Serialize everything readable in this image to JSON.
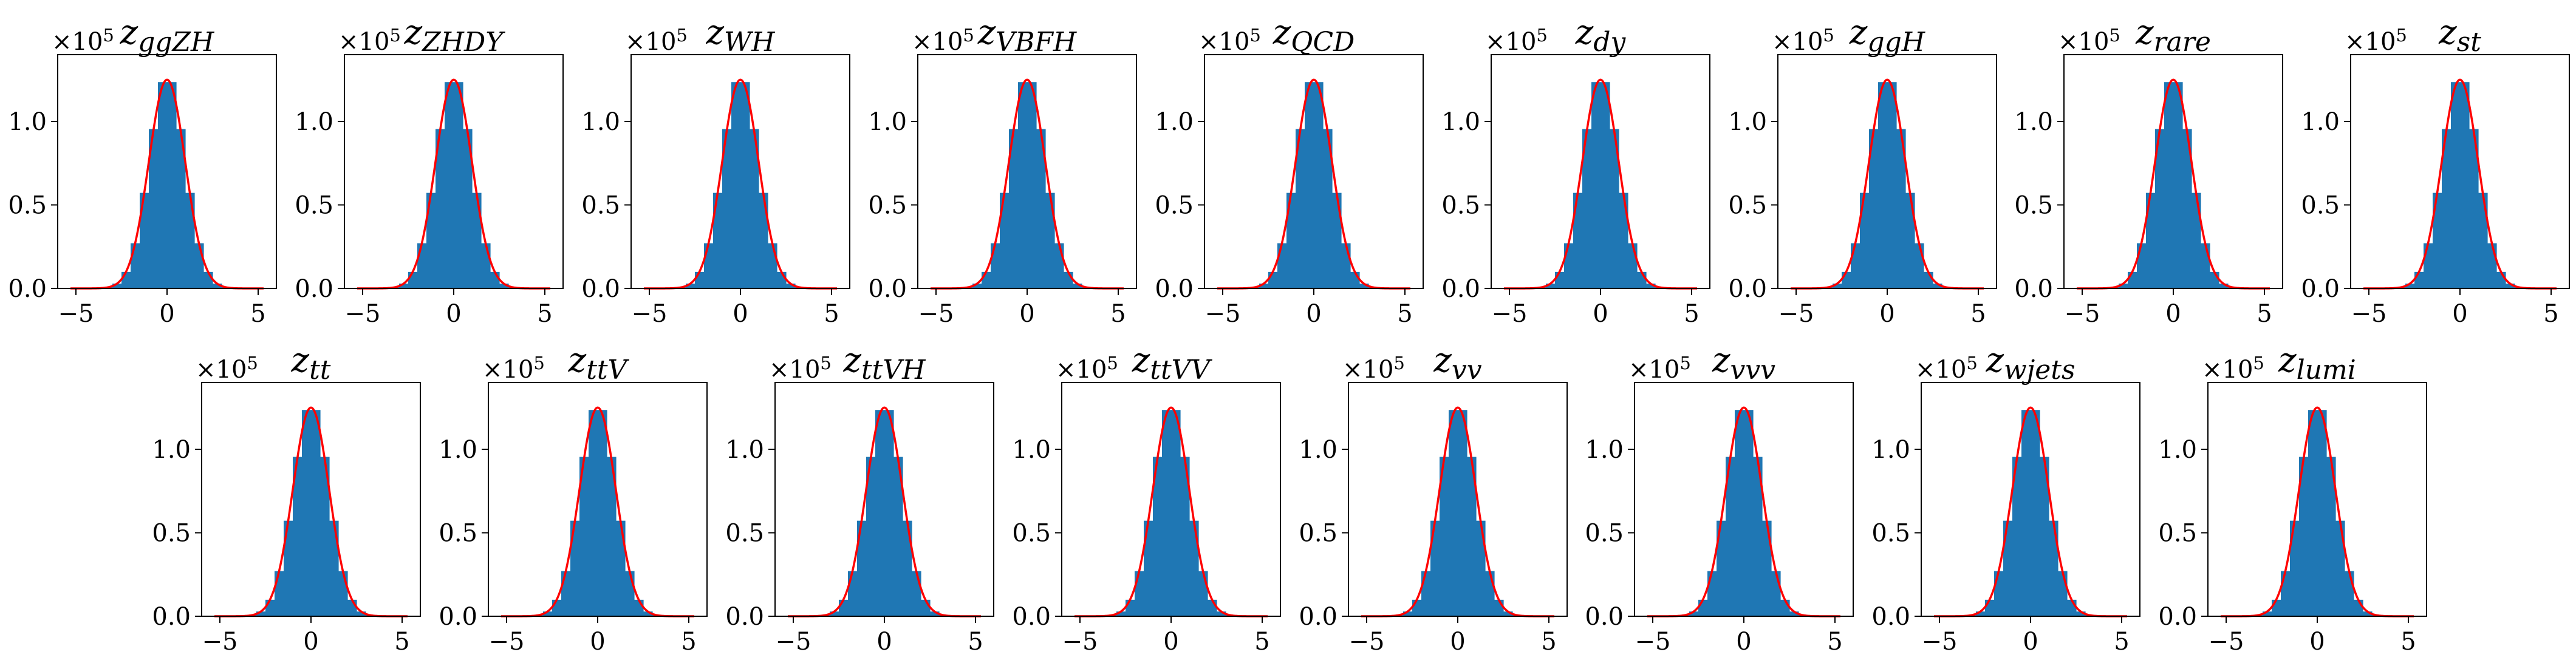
{
  "chart_data": {
    "type": "bar",
    "layout": "two-row grid of histogram panels",
    "shared": {
      "xlim": [
        -6.0,
        6.0
      ],
      "ylim": [
        0,
        1.4
      ],
      "x_ticks": [
        -5,
        0,
        5
      ],
      "x_tick_labels": [
        "−5",
        "0",
        "5"
      ],
      "y_ticks": [
        0.0,
        0.5,
        1.0
      ],
      "y_tick_labels": [
        "0.0",
        "0.5",
        "1.0"
      ],
      "y_scale_prefix": "×10",
      "y_scale_exponent": "5",
      "grid": false,
      "histogram_color": "#1f77b4",
      "fit_curve_color": "#ff0000",
      "bin_centers": [
        -4.75,
        -4.25,
        -3.75,
        -3.25,
        -2.75,
        -2.25,
        -1.75,
        -1.25,
        -0.75,
        -0.25,
        0.25,
        0.75,
        1.25,
        1.75,
        2.25,
        2.75,
        3.25,
        3.75,
        4.25,
        4.75
      ],
      "bin_heights": [
        0.0,
        0.0001,
        0.0011,
        0.0068,
        0.0284,
        0.0987,
        0.2705,
        0.5721,
        0.9543,
        1.2356,
        1.2356,
        0.9543,
        0.5721,
        0.2705,
        0.0987,
        0.0284,
        0.0068,
        0.0011,
        0.0001,
        0.0
      ],
      "fit_curve": {
        "shape": "gaussian",
        "mean": 0.0,
        "sigma": 1.0,
        "peak": 1.25
      }
    },
    "panels": [
      {
        "base": "z",
        "sub": "ggZH"
      },
      {
        "base": "z",
        "sub": "ZHDY"
      },
      {
        "base": "z",
        "sub": "WH"
      },
      {
        "base": "z",
        "sub": "VBFH"
      },
      {
        "base": "z",
        "sub": "QCD"
      },
      {
        "base": "z",
        "sub": "dy"
      },
      {
        "base": "z",
        "sub": "ggH"
      },
      {
        "base": "z",
        "sub": "rare"
      },
      {
        "base": "z",
        "sub": "st"
      },
      {
        "base": "z",
        "sub": "tt"
      },
      {
        "base": "z",
        "sub": "ttV"
      },
      {
        "base": "z",
        "sub": "ttVH"
      },
      {
        "base": "z",
        "sub": "ttVV"
      },
      {
        "base": "z",
        "sub": "vv"
      },
      {
        "base": "z",
        "sub": "vvv"
      },
      {
        "base": "z",
        "sub": "wjets"
      },
      {
        "base": "z",
        "sub": "lumi"
      }
    ]
  }
}
